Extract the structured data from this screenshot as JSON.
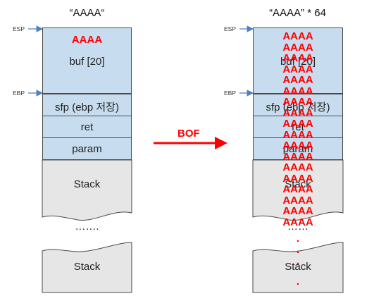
{
  "left": {
    "title": "“AAAA“",
    "input": "AAAA",
    "buf": "buf [20]",
    "sfp": "sfp (ebp 저장)",
    "ret": "ret",
    "param": "param",
    "stack_top": "Stack",
    "ellipsis": "…….",
    "stack_bottom": "Stack"
  },
  "right": {
    "title": "“AAAA” * 64",
    "buf": "buf [20]",
    "sfp": "sfp (ebp 저장)",
    "ret": "ret",
    "param": "param",
    "stack_top": "Stack",
    "ellipsis": "……",
    "stack_bottom": "Stack",
    "overflow_rows": [
      "AAAA",
      "AAAA",
      "AAAA",
      "AAAA",
      "AAAA",
      "AAAA",
      "AAAA",
      "AAAA",
      "AAAA",
      "AAAA",
      "AAAA",
      "AAAA",
      "AAAA",
      "AAAA",
      "AAAA",
      "AAAA",
      "AAAA",
      "AAAA"
    ],
    "dots": [
      ".",
      ".",
      ".",
      "."
    ]
  },
  "labels": {
    "esp": "ESP",
    "ebp": "EBP",
    "bof": "BOF"
  },
  "colors": {
    "buffer_fill": "#c7ddef",
    "stack_fill": "#e6e6e6",
    "overflow_red": "#ff0000",
    "pointer_blue": "#4f81bd"
  }
}
